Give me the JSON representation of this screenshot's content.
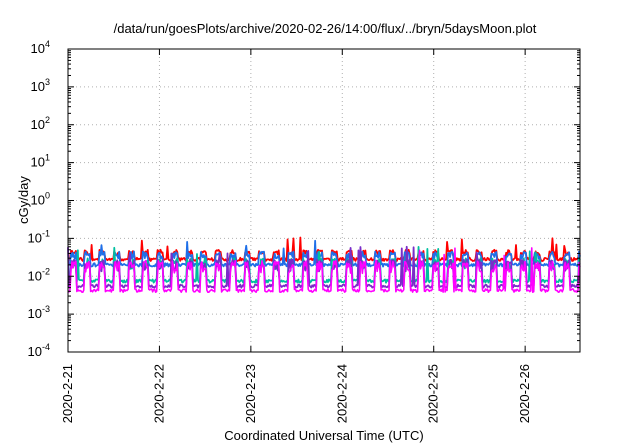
{
  "chart_data": {
    "type": "line",
    "title": "/data/run/goesPlots/archive/2020-02-26/14:00/flux/../bryn/5daysMoon.plot",
    "xlabel": "Coordinated Universal Time (UTC)",
    "ylabel": "cGy/day",
    "yscale": "log",
    "ylim": [
      0.0001,
      10000
    ],
    "xlim": [
      0,
      5.6
    ],
    "grid": true,
    "x_ticks": [
      {
        "x": 0,
        "label": "2020-2-21"
      },
      {
        "x": 1,
        "label": "2020-2-22"
      },
      {
        "x": 2,
        "label": "2020-2-23"
      },
      {
        "x": 3,
        "label": "2020-2-24"
      },
      {
        "x": 4,
        "label": "2020-2-25"
      },
      {
        "x": 5,
        "label": "2020-2-26"
      }
    ],
    "y_ticks": [
      {
        "value": 0.0001,
        "base": "10",
        "exp": "-4"
      },
      {
        "value": 0.001,
        "base": "10",
        "exp": "-3"
      },
      {
        "value": 0.01,
        "base": "10",
        "exp": "-2"
      },
      {
        "value": 0.1,
        "base": "10",
        "exp": "-1"
      },
      {
        "value": 1,
        "base": "10",
        "exp": "0"
      },
      {
        "value": 10,
        "base": "10",
        "exp": "1"
      },
      {
        "value": 100,
        "base": "10",
        "exp": "2"
      },
      {
        "value": 1000,
        "base": "10",
        "exp": "3"
      },
      {
        "value": 10000,
        "base": "10",
        "exp": "4"
      }
    ],
    "series": [
      {
        "color": "#ff0000",
        "base": 0.028,
        "spike": 0.05,
        "seed": 11
      },
      {
        "color": "#1f6fe8",
        "base": 0.02,
        "spike": 0.045,
        "seed": 23
      },
      {
        "color": "#00c0a0",
        "base": 0.0075,
        "spike": 0.03,
        "seed": 37
      },
      {
        "color": "#7a2cc8",
        "base": 0.0055,
        "spike": 0.028,
        "seed": 41
      },
      {
        "color": "#ff00ff",
        "base": 0.0042,
        "spike": 0.026,
        "seed": 53
      }
    ],
    "samples": 520
  }
}
